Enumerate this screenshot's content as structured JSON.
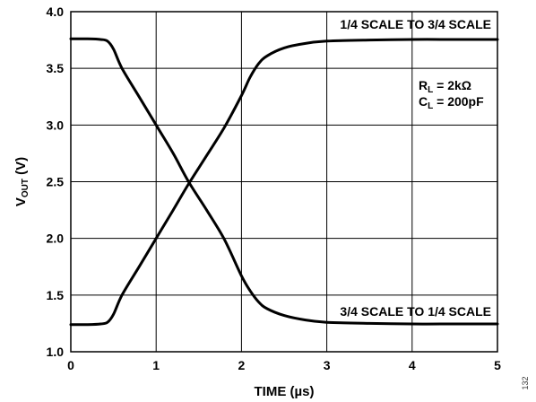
{
  "chart_data": {
    "type": "line",
    "xlabel": "TIME (µs)",
    "ylabel": {
      "main": "V",
      "subscript": "OUT",
      "unit": " (V)"
    },
    "xlim": [
      0,
      5
    ],
    "ylim": [
      1.0,
      4.0
    ],
    "x_ticks": [
      0,
      1,
      2,
      3,
      4,
      5
    ],
    "x_tick_labels": [
      "0",
      "1",
      "2",
      "3",
      "4",
      "5"
    ],
    "y_ticks": [
      1.0,
      1.5,
      2.0,
      2.5,
      3.0,
      3.5,
      4.0
    ],
    "y_tick_labels": [
      "1.0",
      "1.5",
      "2.0",
      "2.5",
      "3.0",
      "3.5",
      "4.0"
    ],
    "grid": true,
    "series": [
      {
        "name": "1/4 SCALE TO 3/4 SCALE",
        "color": "#000000",
        "points": [
          [
            0,
            1.24
          ],
          [
            0.2,
            1.24
          ],
          [
            0.35,
            1.245
          ],
          [
            0.43,
            1.26
          ],
          [
            0.5,
            1.33
          ],
          [
            0.6,
            1.5
          ],
          [
            0.8,
            1.75
          ],
          [
            1.0,
            2.0
          ],
          [
            1.2,
            2.25
          ],
          [
            1.38,
            2.48
          ],
          [
            1.6,
            2.74
          ],
          [
            1.8,
            2.98
          ],
          [
            2.0,
            3.26
          ],
          [
            2.1,
            3.42
          ],
          [
            2.2,
            3.54
          ],
          [
            2.3,
            3.61
          ],
          [
            2.5,
            3.68
          ],
          [
            2.75,
            3.72
          ],
          [
            3.0,
            3.74
          ],
          [
            3.5,
            3.75
          ],
          [
            4.0,
            3.755
          ],
          [
            4.5,
            3.755
          ],
          [
            5.0,
            3.755
          ]
        ]
      },
      {
        "name": "3/4 SCALE TO 1/4 SCALE",
        "color": "#000000",
        "points": [
          [
            0,
            3.76
          ],
          [
            0.2,
            3.76
          ],
          [
            0.35,
            3.755
          ],
          [
            0.43,
            3.74
          ],
          [
            0.5,
            3.67
          ],
          [
            0.6,
            3.5
          ],
          [
            0.8,
            3.25
          ],
          [
            1.0,
            3.0
          ],
          [
            1.2,
            2.75
          ],
          [
            1.38,
            2.5
          ],
          [
            1.6,
            2.24
          ],
          [
            1.8,
            1.99
          ],
          [
            2.0,
            1.67
          ],
          [
            2.1,
            1.54
          ],
          [
            2.2,
            1.44
          ],
          [
            2.3,
            1.38
          ],
          [
            2.5,
            1.32
          ],
          [
            2.75,
            1.28
          ],
          [
            3.0,
            1.26
          ],
          [
            3.5,
            1.25
          ],
          [
            4.0,
            1.245
          ],
          [
            4.5,
            1.245
          ],
          [
            5.0,
            1.245
          ]
        ]
      }
    ],
    "annotations": [
      {
        "text": "1/4 SCALE TO 3/4 SCALE"
      },
      {
        "text": "3/4 SCALE TO 1/4 SCALE"
      },
      {
        "lines": [
          {
            "main": "R",
            "subscript": "L",
            "value": " = 2kΩ"
          },
          {
            "main": "C",
            "subscript": "L",
            "value": " = 200pF"
          }
        ]
      }
    ],
    "figure_id": "132"
  }
}
